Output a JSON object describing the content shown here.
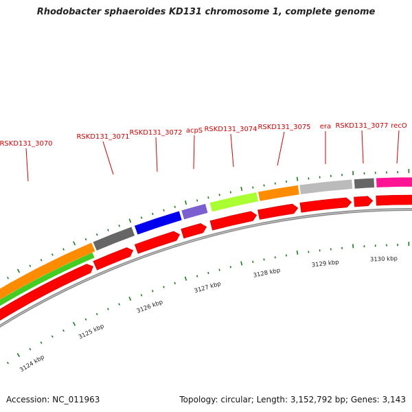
{
  "title": "Rhodobacter sphaeroides KD131 chromosome 1, complete genome",
  "footer": {
    "accession": "Accession: NC_011963",
    "summary": "Topology: circular; Length: 3,152,792 bp; Genes: 3,143"
  },
  "colors": {
    "gene_label": "#cc0000",
    "tick": "#1a7a1a",
    "cds": "#ff0000",
    "backbone": "#888888"
  },
  "scale_labels": [
    "3124 kbp",
    "3125 kbp",
    "3126 kbp",
    "3127 kbp",
    "3128 kbp",
    "3129 kbp",
    "3130 kbp"
  ],
  "gene_labels": [
    "RSKD131_3070",
    "RSKD131_3071",
    "RSKD131_3072",
    "acpS",
    "RSKD131_3074",
    "RSKD131_3075",
    "era",
    "RSKD131_3077",
    "recO"
  ],
  "feature_colors": [
    "#ff8c00",
    "#666666",
    "#0000ee",
    "#7b5fd1",
    "#aaff33",
    "#ff8c00",
    "#bbbbbb",
    "#666666",
    "#ff1493"
  ]
}
